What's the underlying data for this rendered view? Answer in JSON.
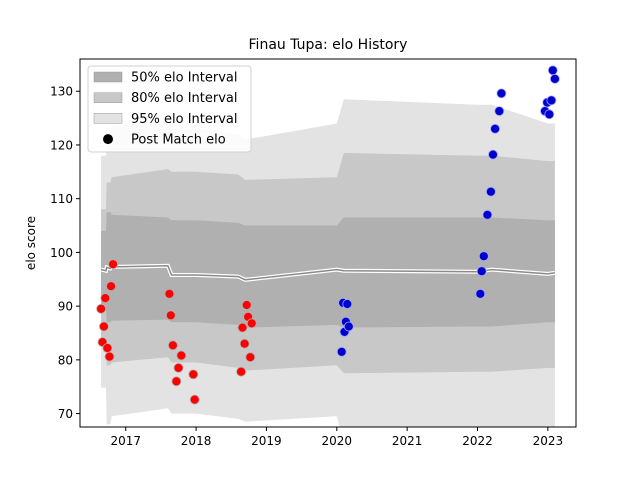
{
  "chart_data": {
    "type": "area",
    "title": "Finau Tupa: elo History",
    "xlabel": "",
    "ylabel": "elo score",
    "xlim": [
      2016.35,
      2023.4
    ],
    "ylim": [
      67.5,
      136.0
    ],
    "x_ticks": [
      2017,
      2018,
      2019,
      2020,
      2021,
      2022,
      2023
    ],
    "x_tick_labels": [
      "2017",
      "2018",
      "2019",
      "2020",
      "2021",
      "2022",
      "2023"
    ],
    "y_ticks": [
      70,
      80,
      90,
      100,
      110,
      120,
      130
    ],
    "y_tick_labels": [
      "70",
      "80",
      "90",
      "100",
      "110",
      "120",
      "130"
    ],
    "grid": false,
    "legend_position": "top-left",
    "legend": [
      {
        "label": "50% elo Interval",
        "kind": "band",
        "color": "#b0b0b0"
      },
      {
        "label": "80% elo Interval",
        "kind": "band",
        "color": "#c8c8c8"
      },
      {
        "label": "95% elo Interval",
        "kind": "band",
        "color": "#e3e3e3"
      },
      {
        "label": "Post Match elo",
        "kind": "marker",
        "color": "#000000"
      }
    ],
    "bands": {
      "x": [
        2016.65,
        2016.72,
        2016.73,
        2016.78,
        2016.8,
        2017.6,
        2017.65,
        2018.0,
        2018.6,
        2018.7,
        2020.0,
        2020.1,
        2022.0,
        2022.2,
        2023.0,
        2023.1
      ],
      "mean": [
        96.8,
        96.6,
        97.2,
        97.0,
        97.3,
        97.5,
        95.8,
        95.8,
        95.5,
        94.9,
        96.8,
        96.6,
        96.4,
        96.8,
        96.0,
        96.2
      ],
      "p95_upper": [
        118.0,
        118.0,
        122.0,
        122.0,
        123.5,
        124.5,
        123.0,
        123.0,
        122.0,
        121.0,
        124.0,
        128.5,
        127.5,
        127.5,
        124.0,
        124.0
      ],
      "p95_lower": [
        74.8,
        74.8,
        68.0,
        68.0,
        69.5,
        71.0,
        70.0,
        70.0,
        69.0,
        68.5,
        69.5,
        64.5,
        65.0,
        65.0,
        67.5,
        67.5
      ],
      "p80_upper": [
        108.0,
        108.0,
        113.0,
        113.0,
        114.0,
        115.5,
        115.0,
        115.0,
        114.5,
        113.5,
        114.0,
        118.5,
        118.0,
        118.0,
        117.0,
        117.0
      ],
      "p80_lower": [
        82.5,
        82.5,
        79.0,
        79.0,
        79.5,
        80.5,
        79.5,
        79.5,
        78.5,
        78.0,
        79.0,
        77.5,
        77.8,
        77.8,
        78.5,
        78.5
      ],
      "p50_upper": [
        104.0,
        104.0,
        107.5,
        107.5,
        107.0,
        106.5,
        106.0,
        106.0,
        105.5,
        105.0,
        105.0,
        106.5,
        106.5,
        106.5,
        106.0,
        106.0
      ],
      "p50_lower": [
        89.5,
        89.5,
        87.0,
        87.0,
        87.3,
        87.5,
        87.0,
        87.0,
        86.5,
        86.0,
        86.5,
        86.0,
        86.2,
        86.2,
        87.0,
        87.0
      ]
    },
    "series": [
      {
        "color": "#ff0000",
        "x": [
          2016.65,
          2016.67,
          2016.69,
          2016.71,
          2016.74,
          2016.77,
          2016.79,
          2016.82,
          2017.62,
          2017.64,
          2017.67,
          2017.72,
          2017.75,
          2017.79,
          2017.96,
          2017.98,
          2018.64,
          2018.66,
          2018.69,
          2018.72,
          2018.74,
          2018.77,
          2018.79
        ],
        "y": [
          89.5,
          83.3,
          86.2,
          91.5,
          82.2,
          80.6,
          93.7,
          97.8,
          92.3,
          88.3,
          82.7,
          76.0,
          78.5,
          80.8,
          77.3,
          72.6,
          77.8,
          86.0,
          83.0,
          90.2,
          88.0,
          80.5,
          86.8
        ]
      },
      {
        "color": "#0000cd",
        "x": [
          2020.07,
          2020.09,
          2020.11,
          2020.13,
          2020.15,
          2020.17,
          2022.04,
          2022.06,
          2022.09,
          2022.14,
          2022.19,
          2022.22,
          2022.25,
          2022.31,
          2022.34,
          2022.96,
          2022.99,
          2023.02,
          2023.05,
          2023.07,
          2023.1
        ],
        "y": [
          81.5,
          90.6,
          85.2,
          87.1,
          90.4,
          86.2,
          92.3,
          96.5,
          99.3,
          107.0,
          111.3,
          118.2,
          123.0,
          126.3,
          129.6,
          126.3,
          127.9,
          125.7,
          128.3,
          133.9,
          132.3
        ]
      }
    ]
  }
}
